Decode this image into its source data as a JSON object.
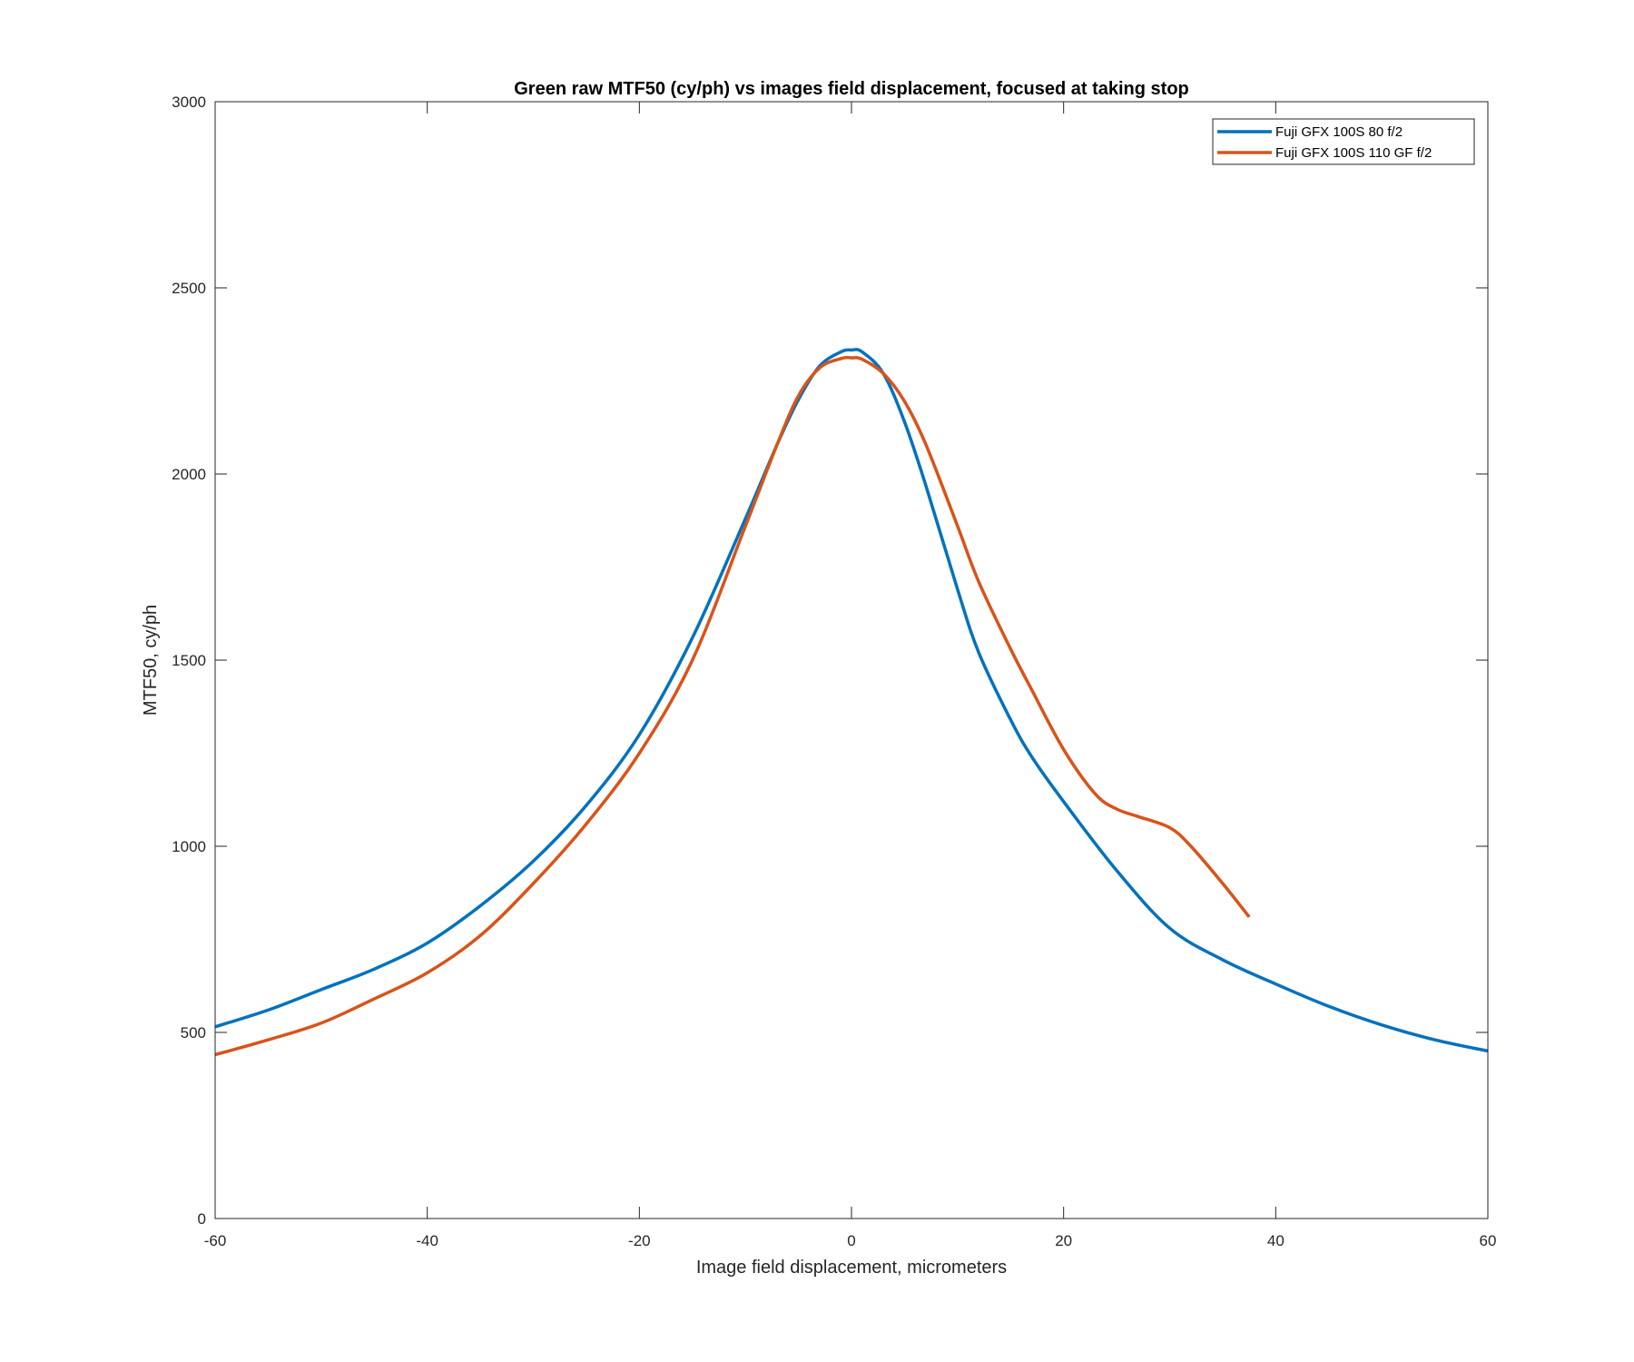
{
  "chart_data": {
    "type": "line",
    "title": "Green raw MTF50 (cy/ph) vs images field displacement, focused at taking stop",
    "xlabel": "Image field displacement, micrometers",
    "ylabel": "MTF50, cy/ph",
    "xlim": [
      -60,
      60
    ],
    "ylim": [
      0,
      3000
    ],
    "xticks": [
      -60,
      -40,
      -20,
      0,
      20,
      40,
      60
    ],
    "yticks": [
      0,
      500,
      1000,
      1500,
      2000,
      2500,
      3000
    ],
    "grid": false,
    "legend_position": "top-right",
    "series": [
      {
        "name": "Fuji GFX 100S 80 f/2",
        "color": "#0072BD",
        "x": [
          -60,
          -55,
          -50,
          -45,
          -40,
          -35,
          -30,
          -25,
          -20,
          -15,
          -10,
          -7,
          -5,
          -3,
          -1,
          0,
          1,
          3,
          5,
          7,
          10,
          12,
          15,
          17,
          20,
          25,
          30,
          35,
          40,
          45,
          50,
          55,
          60
        ],
        "y": [
          515,
          560,
          615,
          670,
          740,
          840,
          960,
          1110,
          1300,
          1560,
          1880,
          2080,
          2200,
          2290,
          2328,
          2333,
          2328,
          2270,
          2140,
          1970,
          1690,
          1520,
          1340,
          1240,
          1120,
          935,
          780,
          695,
          630,
          570,
          520,
          480,
          450
        ]
      },
      {
        "name": "Fuji GFX 100S 110 GF f/2",
        "color": "#D95319",
        "x": [
          -60,
          -55,
          -50,
          -45,
          -40,
          -35,
          -30,
          -25,
          -20,
          -15,
          -10,
          -7,
          -5,
          -3,
          -1,
          0,
          1,
          3,
          5,
          7,
          10,
          12,
          15,
          17,
          20,
          23,
          25,
          27,
          30,
          32,
          35,
          37.5
        ],
        "y": [
          440,
          480,
          525,
          590,
          660,
          760,
          900,
          1060,
          1250,
          1500,
          1860,
          2080,
          2210,
          2285,
          2310,
          2312,
          2308,
          2270,
          2195,
          2080,
          1860,
          1710,
          1530,
          1420,
          1260,
          1140,
          1100,
          1080,
          1050,
          1000,
          900,
          810
        ]
      }
    ]
  }
}
